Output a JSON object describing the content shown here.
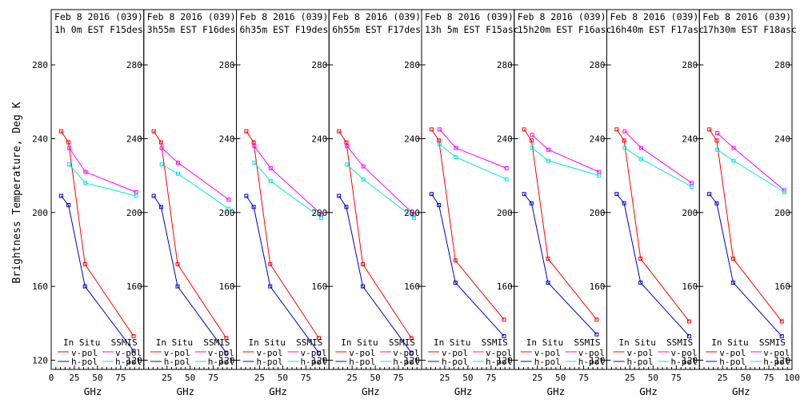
{
  "chart_data": {
    "type": "line",
    "ylabel": "Brightness Temperature, Deg K",
    "xlabel": "GHz",
    "xlim": [
      0,
      100
    ],
    "ylim": [
      115,
      290
    ],
    "yticks": [
      120,
      160,
      200,
      240,
      280
    ],
    "xtick_labels": [
      {
        "value": 0,
        "label": "0"
      },
      {
        "value": 25,
        "label": "25"
      },
      {
        "value": 50,
        "label": "50"
      },
      {
        "value": 75,
        "label": "75"
      },
      {
        "value": 100,
        "label": ""
      }
    ],
    "colors": {
      "insitu_v": "#ff0000",
      "insitu_h": "#0000cc",
      "ssmis_v": "#ff00ff",
      "ssmis_h": "#00e5e5"
    },
    "legend": {
      "insitu": "In Situ",
      "ssmis": "SSMIS",
      "vpol": "v-pol",
      "hpol": "h-pol"
    },
    "panels": [
      {
        "title": "Feb 8 2016 (039)",
        "subtitle": "1h 0m  EST F15des",
        "insitu_v": {
          "x": [
            10.7,
            18.7,
            36.5,
            89
          ],
          "y": [
            244,
            238,
            172,
            133
          ]
        },
        "insitu_h": {
          "x": [
            10.7,
            18.7,
            36.5,
            89
          ],
          "y": [
            209,
            204,
            160,
            125
          ]
        },
        "ssmis_v": {
          "x": [
            19.35,
            37,
            91.655
          ],
          "y": [
            235,
            222,
            211
          ]
        },
        "ssmis_h": {
          "x": [
            19.35,
            37,
            91.655
          ],
          "y": [
            226,
            216,
            209
          ]
        }
      },
      {
        "title": "Feb 8 2016 (039)",
        "subtitle": "3h55m  EST F16des",
        "insitu_v": {
          "x": [
            10.7,
            18.7,
            36.5,
            89
          ],
          "y": [
            244,
            238,
            172,
            132
          ]
        },
        "insitu_h": {
          "x": [
            10.7,
            18.7,
            36.5,
            89
          ],
          "y": [
            209,
            203,
            160,
            124
          ]
        },
        "ssmis_v": {
          "x": [
            19.35,
            37,
            91.655
          ],
          "y": [
            235,
            227,
            207
          ]
        },
        "ssmis_h": {
          "x": [
            19.35,
            37,
            91.655
          ],
          "y": [
            226,
            221,
            202
          ]
        }
      },
      {
        "title": "Feb 8 2016 (039)",
        "subtitle": "6h35m  EST F19des",
        "insitu_v": {
          "x": [
            10.7,
            18.7,
            36.5,
            89
          ],
          "y": [
            244,
            238,
            172,
            132
          ]
        },
        "insitu_h": {
          "x": [
            10.7,
            18.7,
            36.5,
            89
          ],
          "y": [
            209,
            203,
            160,
            124
          ]
        },
        "ssmis_v": {
          "x": [
            19.35,
            37,
            91.655
          ],
          "y": [
            236,
            224,
            199
          ]
        },
        "ssmis_h": {
          "x": [
            19.35,
            37,
            91.655
          ],
          "y": [
            227,
            217,
            197
          ]
        }
      },
      {
        "title": "Feb 8 2016 (039)",
        "subtitle": "6h55m  EST F17des",
        "insitu_v": {
          "x": [
            10.7,
            18.7,
            36.5,
            89
          ],
          "y": [
            244,
            238,
            172,
            132
          ]
        },
        "insitu_h": {
          "x": [
            10.7,
            18.7,
            36.5,
            89
          ],
          "y": [
            209,
            203,
            160,
            124
          ]
        },
        "ssmis_v": {
          "x": [
            19.35,
            37,
            91.655
          ],
          "y": [
            236,
            225,
            199
          ]
        },
        "ssmis_h": {
          "x": [
            19.35,
            37,
            91.655
          ],
          "y": [
            226,
            218,
            197
          ]
        }
      },
      {
        "title": "Feb 8 2016 (039)",
        "subtitle": "13h 5m  EST F15asc",
        "insitu_v": {
          "x": [
            10.7,
            18.7,
            36.5,
            89
          ],
          "y": [
            245,
            239,
            174,
            142
          ]
        },
        "insitu_h": {
          "x": [
            10.7,
            18.7,
            36.5,
            89
          ],
          "y": [
            210,
            204,
            162,
            133
          ]
        },
        "ssmis_v": {
          "x": [
            19.35,
            37,
            91.655
          ],
          "y": [
            245,
            235,
            224
          ]
        },
        "ssmis_h": {
          "x": [
            19.35,
            37,
            91.655
          ],
          "y": [
            237,
            230,
            218
          ]
        }
      },
      {
        "title": "Feb 8 2016 (039)",
        "subtitle": "15h20m  EST F16asc",
        "insitu_v": {
          "x": [
            10.7,
            18.7,
            36.5,
            89
          ],
          "y": [
            245,
            239,
            175,
            142
          ]
        },
        "insitu_h": {
          "x": [
            10.7,
            18.7,
            36.5,
            89
          ],
          "y": [
            210,
            205,
            162,
            134
          ]
        },
        "ssmis_v": {
          "x": [
            19.35,
            37,
            91.655
          ],
          "y": [
            242,
            234,
            222
          ]
        },
        "ssmis_h": {
          "x": [
            19.35,
            37,
            91.655
          ],
          "y": [
            235,
            228,
            220
          ]
        }
      },
      {
        "title": "Feb 8 2016 (039)",
        "subtitle": "16h40m  EST F17asc",
        "insitu_v": {
          "x": [
            10.7,
            18.7,
            36.5,
            89
          ],
          "y": [
            245,
            239,
            175,
            141
          ]
        },
        "insitu_h": {
          "x": [
            10.7,
            18.7,
            36.5,
            89
          ],
          "y": [
            210,
            205,
            162,
            133
          ]
        },
        "ssmis_v": {
          "x": [
            19.35,
            37,
            91.655
          ],
          "y": [
            244,
            235,
            216
          ]
        },
        "ssmis_h": {
          "x": [
            19.35,
            37,
            91.655
          ],
          "y": [
            235,
            229,
            214
          ]
        }
      },
      {
        "title": "Feb 8 2016 (039)",
        "subtitle": "17h30m  EST F18asc",
        "insitu_v": {
          "x": [
            10.7,
            18.7,
            36.5,
            89
          ],
          "y": [
            245,
            239,
            175,
            141
          ]
        },
        "insitu_h": {
          "x": [
            10.7,
            18.7,
            36.5,
            89
          ],
          "y": [
            210,
            205,
            162,
            133
          ]
        },
        "ssmis_v": {
          "x": [
            19.35,
            37,
            91.655
          ],
          "y": [
            243,
            235,
            212
          ]
        },
        "ssmis_h": {
          "x": [
            19.35,
            37,
            91.655
          ],
          "y": [
            234,
            228,
            211
          ]
        }
      }
    ]
  }
}
